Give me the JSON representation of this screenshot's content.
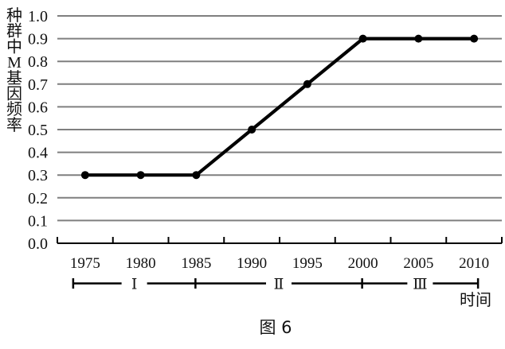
{
  "figure": {
    "caption": "图 6"
  },
  "chart_data": {
    "type": "line",
    "title": "",
    "categories": [
      "1975",
      "1980",
      "1985",
      "1990",
      "1995",
      "2000",
      "2005",
      "2010"
    ],
    "values": [
      0.3,
      0.3,
      0.3,
      0.5,
      0.7,
      0.9,
      0.9,
      0.9
    ],
    "ylabel": "种群中M基因频率",
    "ylabel_chars": [
      "种",
      "群",
      "中",
      "M",
      "基",
      "因",
      "频",
      "率"
    ],
    "xlabel": "时间",
    "y_ticks": [
      "0.0",
      "0.1",
      "0.2",
      "0.3",
      "0.4",
      "0.5",
      "0.6",
      "0.7",
      "0.8",
      "0.9",
      "1.0"
    ],
    "ylim": [
      0.0,
      1.0
    ],
    "grid": "horizontal-gray-lines",
    "legend": "none",
    "line_color": "#000000",
    "grid_color": "#7f7f7f",
    "axis_color": "#000000",
    "marker": "filled-circle",
    "intervals": [
      {
        "label": "Ⅰ",
        "from": "1975",
        "to": "1985"
      },
      {
        "label": "Ⅱ",
        "from": "1985",
        "to": "2000"
      },
      {
        "label": "Ⅲ",
        "from": "2000",
        "to": "2010"
      }
    ]
  }
}
